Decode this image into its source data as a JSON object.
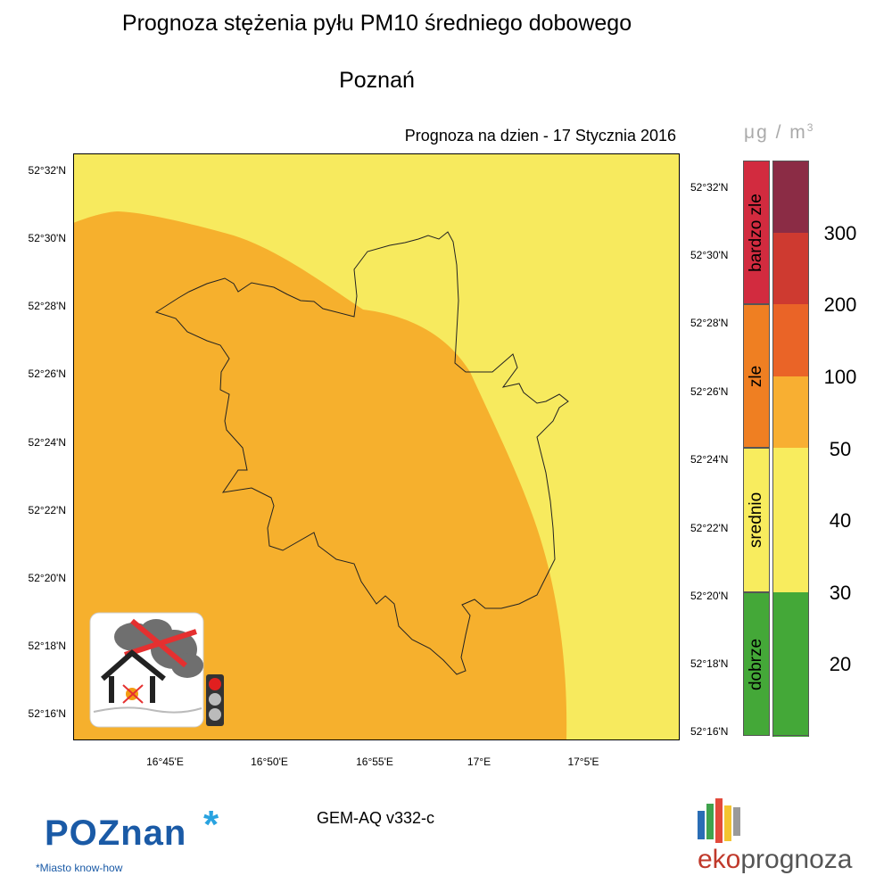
{
  "title": "Prognoza stężenia pyłu PM10 średniego dobowego",
  "subtitle": "Poznań",
  "forecast_label": "Prognoza na dzien -  17 Stycznia 2016",
  "units": {
    "prefix": "μg / m",
    "exponent": "3"
  },
  "latitude_labels": [
    "52°32'N",
    "52°30'N",
    "52°28'N",
    "52°26'N",
    "52°24'N",
    "52°22'N",
    "52°20'N",
    "52°18'N",
    "52°16'N"
  ],
  "longitude_labels": [
    "16°45'E",
    "16°50'E",
    "16°55'E",
    "17°E",
    "17°5'E"
  ],
  "legend": {
    "categories": [
      {
        "label": "bardzo zle",
        "color": "#d22b3f"
      },
      {
        "label": "zle",
        "color": "#ef7f22"
      },
      {
        "label": "srednio",
        "color": "#f8ec5e"
      },
      {
        "label": "dobrze",
        "color": "#44a838"
      }
    ],
    "scale_colors": [
      "#8b2c45",
      "#ce3a30",
      "#ea6427",
      "#f8af32",
      "#f8ec5e",
      "#f8ec5e",
      "#44a838",
      "#44a838"
    ],
    "scale_labels": [
      "300",
      "200",
      "100",
      "50",
      "40",
      "30",
      "20"
    ]
  },
  "map": {
    "colors": {
      "yellow_zone": "#f7ea5e",
      "orange_zone": "#f6b02d",
      "boundary": "#222222"
    },
    "icon": {
      "name": "no-burning-smoke-icon",
      "traffic_light_icon": "traffic-light-icon"
    }
  },
  "model_label": "GEM-AQ v332-c",
  "logos": {
    "poznan": {
      "text": "POZnan",
      "star": "*",
      "slogan": "*Miasto know-how"
    },
    "ekoprognoza": {
      "part1": "eko",
      "part2": "prognoza"
    }
  }
}
